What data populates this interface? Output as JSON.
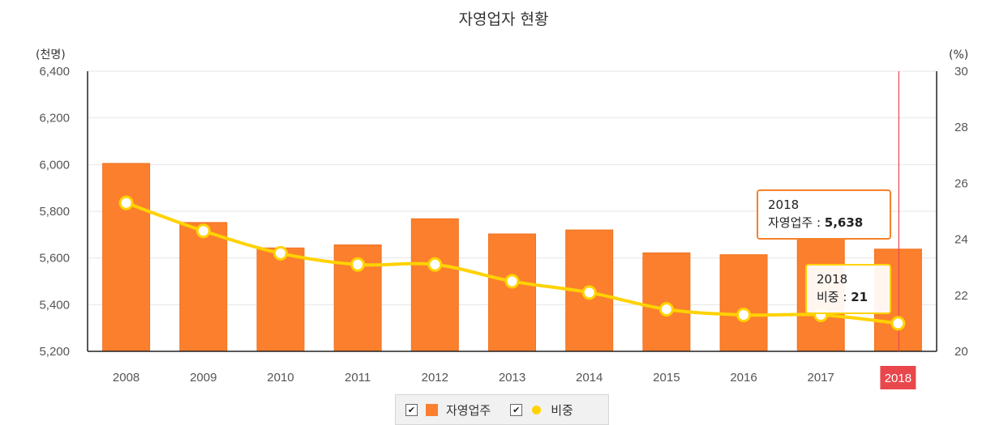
{
  "chart_data": {
    "type": "bar",
    "title": "자영업자 현황",
    "categories": [
      "2008",
      "2009",
      "2010",
      "2011",
      "2012",
      "2013",
      "2014",
      "2015",
      "2016",
      "2017",
      "2018"
    ],
    "series": [
      {
        "name": "자영업주",
        "type": "bar",
        "axis": "left",
        "color": "#fb7f2d",
        "values": [
          6005,
          5752,
          5643,
          5656,
          5768,
          5703,
          5720,
          5622,
          5614,
          5682,
          5638
        ]
      },
      {
        "name": "비중",
        "type": "line",
        "axis": "right",
        "color": "#ffd200",
        "values": [
          25.3,
          24.3,
          23.5,
          23.1,
          23.1,
          22.5,
          22.1,
          21.5,
          21.3,
          21.3,
          21
        ]
      }
    ],
    "yaxis_left": {
      "unit": "(천명)",
      "min": 5200,
      "max": 6400,
      "ticks": [
        "5,200",
        "5,400",
        "5,600",
        "5,800",
        "6,000",
        "6,200",
        "6,400"
      ]
    },
    "yaxis_right": {
      "unit": "(%)",
      "min": 20,
      "max": 30,
      "ticks": [
        "20",
        "22",
        "24",
        "26",
        "28",
        "30"
      ]
    },
    "grid": true,
    "legend_position": "bottom-center",
    "highlighted_category": "2018",
    "highlight_color": "#e8474c"
  },
  "tooltips": {
    "bar": {
      "year": "2018",
      "label": "자영업주 : ",
      "value": "5,638"
    },
    "line": {
      "year": "2018",
      "label": "비중 : ",
      "value": "21"
    }
  },
  "legend": {
    "check_mark": "✔",
    "items": [
      {
        "label": "자영업주",
        "icon": "bar-swatch"
      },
      {
        "label": "비중",
        "icon": "dot-swatch"
      }
    ]
  }
}
